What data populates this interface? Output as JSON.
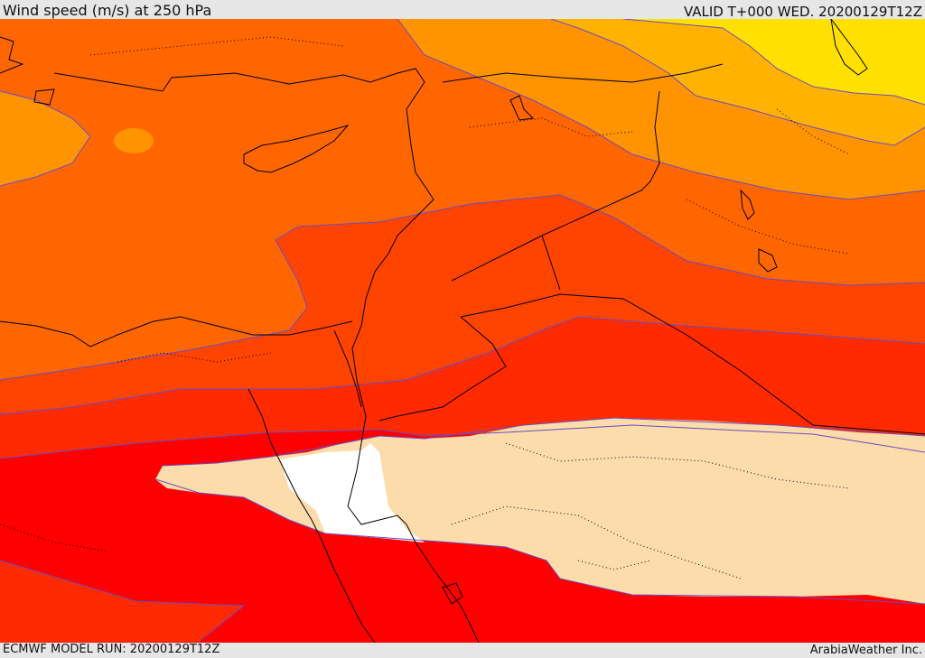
{
  "header": {
    "title": "Wind speed (m/s) at 250 hPa",
    "valid": "VALID T+000 WED. 20200129T12Z"
  },
  "footer": {
    "model_run": "ECMWF MODEL RUN: 20200129T12Z",
    "credit": "ArabiaWeather Inc."
  },
  "map": {
    "parameter": "wind speed",
    "level_hpa": 250,
    "units": "m/s",
    "region": "Eastern Mediterranean and Middle East",
    "colors": {
      "band_yellow": "#ffe000",
      "band_gold": "#ffb300",
      "band_orange": "#ff9400",
      "band_dark_orange": "#ff6600",
      "band_red_orange": "#ff4300",
      "band_orange_red": "#ff2a00",
      "band_red": "#ff0000",
      "band_peach": "#fcdcaa",
      "band_white": "#ffffff",
      "contour": "#6a4bc4",
      "coastline": "#000000"
    }
  }
}
